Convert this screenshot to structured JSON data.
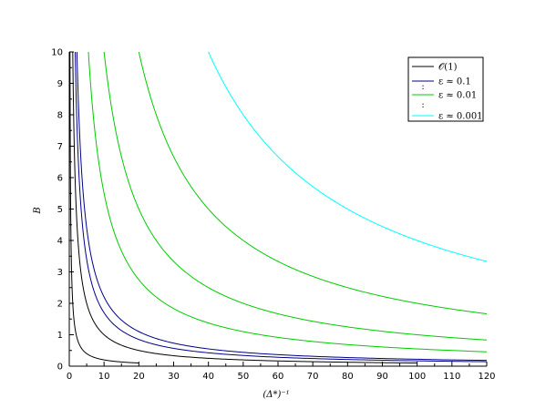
{
  "chart_data": {
    "type": "line",
    "xlabel": "(Δ*)⁻¹",
    "ylabel": "B",
    "xlim": [
      0,
      120
    ],
    "ylim": [
      0,
      10
    ],
    "xticks": [
      "0",
      "10",
      "20",
      "30",
      "40",
      "50",
      "60",
      "70",
      "80",
      "90",
      "100",
      "110",
      "120"
    ],
    "yticks": [
      "0",
      "1",
      "2",
      "3",
      "4",
      "5",
      "6",
      "7",
      "8",
      "9",
      "10"
    ],
    "grid": false,
    "legend_position": "top-right",
    "legend": [
      {
        "label": "𝒪(1)",
        "color": "#000000"
      },
      {
        "label": "ε ≈ 0.1",
        "color": "#00008b"
      },
      {
        "label": "ε ≈ 0.01",
        "color": "#00cc00"
      },
      {
        "label": "ε ≈ 0.001",
        "color": "#00ffff"
      }
    ],
    "legend_dots": [
      ":",
      ":"
    ],
    "series": [
      {
        "group": 0,
        "color": "#000000",
        "k": 2.0,
        "x_range": [
          0.2,
          20
        ]
      },
      {
        "group": 0,
        "color": "#000000",
        "k": 10.0,
        "x_range": [
          1.0,
          100
        ]
      },
      {
        "group": 1,
        "color": "#00008b",
        "k": 17.0,
        "x_range": [
          1.7,
          120
        ]
      },
      {
        "group": 1,
        "color": "#00008b",
        "k": 22.0,
        "x_range": [
          2.2,
          120
        ]
      },
      {
        "group": 2,
        "color": "#00cc00",
        "k": 55.0,
        "x_range": [
          5.5,
          120
        ]
      },
      {
        "group": 2,
        "color": "#00cc00",
        "k": 100.0,
        "x_range": [
          10,
          120
        ]
      },
      {
        "group": 2,
        "color": "#00cc00",
        "k": 200.0,
        "x_range": [
          20,
          120
        ]
      },
      {
        "group": 3,
        "color": "#00ffff",
        "k": 400.0,
        "x_range": [
          40,
          120
        ]
      }
    ]
  }
}
